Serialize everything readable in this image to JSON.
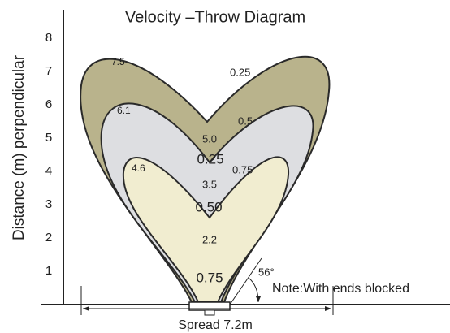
{
  "title": "Velocity –Throw Diagram",
  "y_axis": {
    "label": "Distance (m) perpendicular",
    "ticks": [
      1,
      2,
      3,
      4,
      5,
      6,
      7,
      8
    ]
  },
  "zones": [
    {
      "throw": "7.5",
      "velocity": "0.25"
    },
    {
      "throw": "6.1",
      "velocity": "0.5"
    },
    {
      "throw": "4.6",
      "velocity": "0.75"
    }
  ],
  "center_labels": [
    "5.0",
    "0.25",
    "3.5",
    "0.50",
    "2.2",
    "0.75"
  ],
  "angle": "56°",
  "note": "Note:With ends blocked",
  "spread": "Spread 7.2m"
}
